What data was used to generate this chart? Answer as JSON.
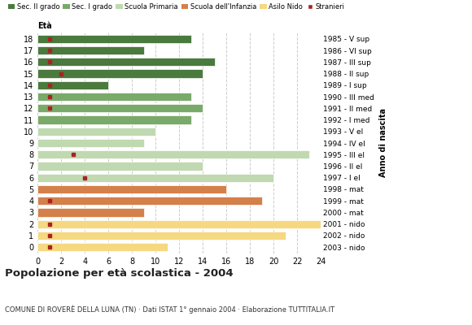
{
  "ages": [
    18,
    17,
    16,
    15,
    14,
    13,
    12,
    11,
    10,
    9,
    8,
    7,
    6,
    5,
    4,
    3,
    2,
    1,
    0
  ],
  "years": [
    "1985 - V sup",
    "1986 - VI sup",
    "1987 - III sup",
    "1988 - II sup",
    "1989 - I sup",
    "1990 - III med",
    "1991 - II med",
    "1992 - I med",
    "1993 - V el",
    "1994 - IV el",
    "1995 - III el",
    "1996 - II el",
    "1997 - I el",
    "1998 - mat",
    "1999 - mat",
    "2000 - mat",
    "2001 - nido",
    "2002 - nido",
    "2003 - nido"
  ],
  "values": [
    13,
    9,
    15,
    14,
    6,
    13,
    14,
    13,
    10,
    9,
    23,
    14,
    20,
    16,
    19,
    9,
    24,
    21,
    11
  ],
  "stranieri": [
    1,
    1,
    1,
    2,
    1,
    1,
    1,
    0,
    0,
    0,
    3,
    0,
    4,
    0,
    1,
    0,
    1,
    1,
    1
  ],
  "bar_colors": [
    "#4a7a3d",
    "#4a7a3d",
    "#4a7a3d",
    "#4a7a3d",
    "#4a7a3d",
    "#7aaa6a",
    "#7aaa6a",
    "#7aaa6a",
    "#c0d9b0",
    "#c0d9b0",
    "#c0d9b0",
    "#c0d9b0",
    "#c0d9b0",
    "#d4804a",
    "#d4804a",
    "#d4804a",
    "#f5d880",
    "#f5d880",
    "#f5d880"
  ],
  "stranieri_color": "#aa2222",
  "legend_labels": [
    "Sec. II grado",
    "Sec. I grado",
    "Scuola Primaria",
    "Scuola dell'Infanzia",
    "Asilo Nido",
    "Stranieri"
  ],
  "legend_colors": [
    "#4a7a3d",
    "#7aaa6a",
    "#c0d9b0",
    "#d4804a",
    "#f5d880",
    "#aa2222"
  ],
  "title": "Popolazione per età scolastica - 2004",
  "subtitle": "COMUNE DI ROVERÈ DELLA LUNA (TN) · Dati ISTAT 1° gennaio 2004 · Elaborazione TUTTITALIA.IT",
  "xlabel_left": "Età",
  "xlabel_right": "Anno di nascita",
  "xlim": [
    0,
    24
  ],
  "xticks": [
    0,
    2,
    4,
    6,
    8,
    10,
    12,
    14,
    16,
    18,
    20,
    22,
    24
  ],
  "background_color": "#ffffff",
  "plot_bg_color": "#ffffff",
  "grid_color": "#cccccc"
}
